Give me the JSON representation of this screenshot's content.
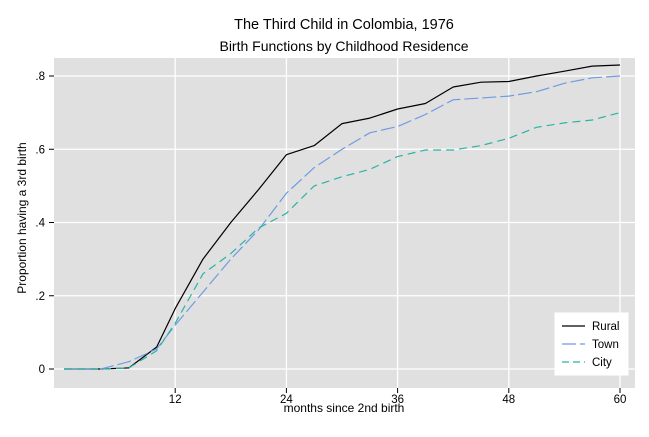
{
  "chart_data": {
    "type": "line",
    "title": "The Third Child in Colombia, 1976",
    "subtitle": "Birth Functions by Childhood Residence",
    "xlabel": "months since 2nd birth",
    "ylabel": "Proportion having a 3rd birth",
    "xlim": [
      0,
      61
    ],
    "ylim": [
      0,
      0.85
    ],
    "xticks": [
      12,
      24,
      36,
      48,
      60
    ],
    "xtick_labels": [
      "12",
      "24",
      "36",
      "48",
      "60"
    ],
    "yticks": [
      0,
      0.2,
      0.4,
      0.6,
      0.8
    ],
    "ytick_labels": [
      "0",
      ".2",
      ".4",
      ".6",
      ".8"
    ],
    "grid": true,
    "legend_position": "bottom-right",
    "background": "#e0e0e0",
    "series": [
      {
        "name": "Rural",
        "color": "#000000",
        "dash": "solid",
        "x": [
          0,
          4,
          7,
          10,
          12,
          15,
          18,
          21,
          24,
          27,
          30,
          33,
          36,
          39,
          42,
          45,
          48,
          51,
          54,
          57,
          60
        ],
        "y": [
          0,
          0,
          0.003,
          0.06,
          0.165,
          0.3,
          0.4,
          0.49,
          0.585,
          0.61,
          0.67,
          0.685,
          0.71,
          0.725,
          0.77,
          0.783,
          0.785,
          0.8,
          0.813,
          0.827,
          0.83
        ]
      },
      {
        "name": "Town",
        "color": "#6f9be3",
        "dash": "longdash",
        "x": [
          0,
          4,
          7,
          10,
          12,
          15,
          18,
          21,
          24,
          27,
          30,
          33,
          36,
          39,
          42,
          45,
          48,
          51,
          54,
          57,
          60
        ],
        "y": [
          0,
          0,
          0.02,
          0.055,
          0.12,
          0.21,
          0.3,
          0.38,
          0.48,
          0.55,
          0.6,
          0.645,
          0.662,
          0.695,
          0.735,
          0.74,
          0.745,
          0.757,
          0.78,
          0.795,
          0.8
        ]
      },
      {
        "name": "City",
        "color": "#2ab4a4",
        "dash": "dash",
        "x": [
          0,
          4,
          7,
          10,
          12,
          15,
          18,
          21,
          24,
          27,
          30,
          33,
          36,
          39,
          42,
          45,
          48,
          51,
          54,
          57,
          60
        ],
        "y": [
          0,
          0,
          0.003,
          0.05,
          0.125,
          0.26,
          0.315,
          0.385,
          0.425,
          0.5,
          0.525,
          0.545,
          0.58,
          0.598,
          0.598,
          0.61,
          0.63,
          0.66,
          0.672,
          0.68,
          0.7
        ]
      }
    ]
  }
}
